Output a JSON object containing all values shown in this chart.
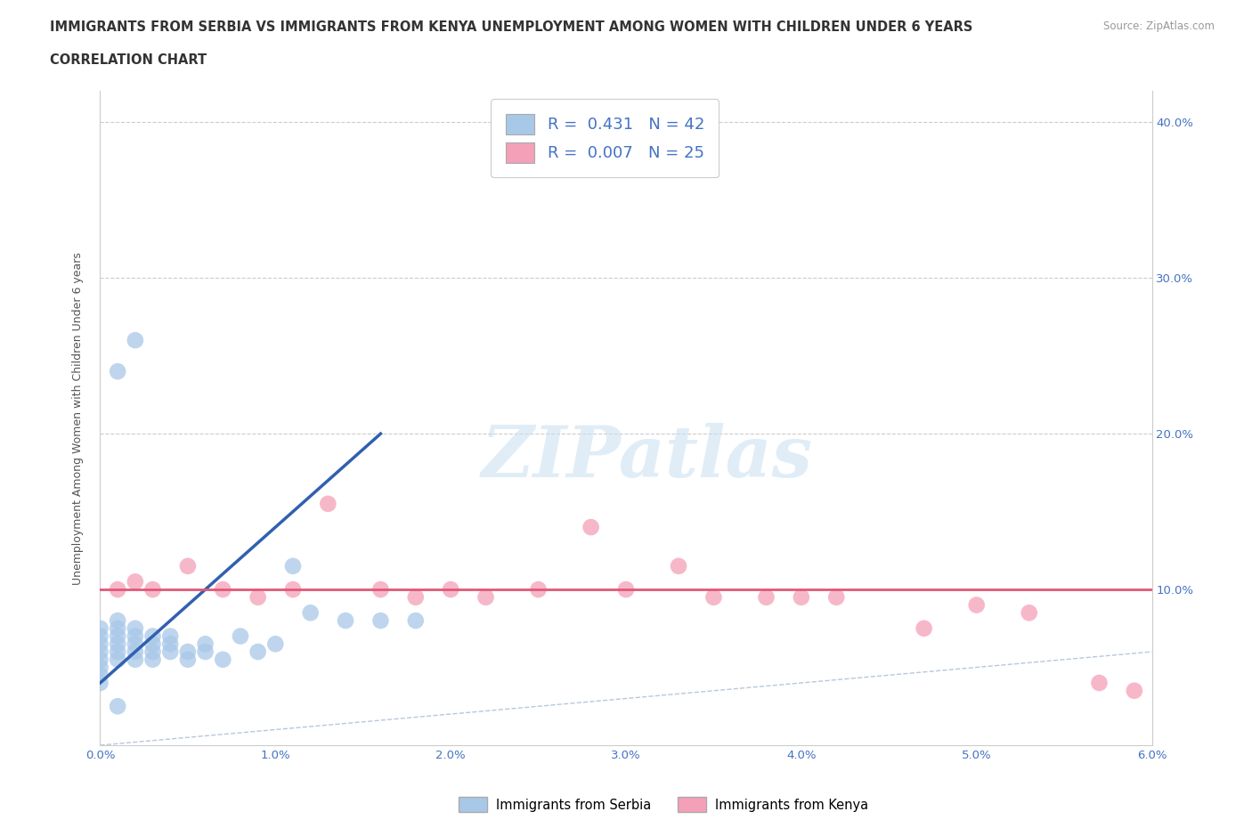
{
  "title_line1": "IMMIGRANTS FROM SERBIA VS IMMIGRANTS FROM KENYA UNEMPLOYMENT AMONG WOMEN WITH CHILDREN UNDER 6 YEARS",
  "title_line2": "CORRELATION CHART",
  "source": "Source: ZipAtlas.com",
  "watermark": "ZIPatlas",
  "ylabel": "Unemployment Among Women with Children Under 6 years",
  "xlim": [
    0.0,
    0.06
  ],
  "ylim": [
    0.0,
    0.42
  ],
  "xticks": [
    0.0,
    0.01,
    0.02,
    0.03,
    0.04,
    0.05,
    0.06
  ],
  "xticklabels": [
    "0.0%",
    "1.0%",
    "2.0%",
    "3.0%",
    "4.0%",
    "5.0%",
    "6.0%"
  ],
  "yticks": [
    0.0,
    0.1,
    0.2,
    0.3,
    0.4
  ],
  "yticklabels": [
    "",
    "10.0%",
    "20.0%",
    "30.0%",
    "40.0%"
  ],
  "serbia_color": "#a8c8e8",
  "kenya_color": "#f4a0b8",
  "serbia_R": 0.431,
  "serbia_N": 42,
  "kenya_R": 0.007,
  "kenya_N": 25,
  "serbia_line_color": "#3060b0",
  "kenya_line_color": "#e05878",
  "diagonal_color": "#b8c8d8",
  "serbia_x": [
    0.0,
    0.0,
    0.0,
    0.0,
    0.0,
    0.0,
    0.0,
    0.0,
    0.001,
    0.001,
    0.001,
    0.001,
    0.001,
    0.001,
    0.001,
    0.002,
    0.002,
    0.002,
    0.002,
    0.002,
    0.003,
    0.003,
    0.003,
    0.003,
    0.004,
    0.004,
    0.004,
    0.005,
    0.005,
    0.006,
    0.006,
    0.007,
    0.008,
    0.009,
    0.01,
    0.011,
    0.012,
    0.014,
    0.016,
    0.018,
    0.002,
    0.001
  ],
  "serbia_y": [
    0.065,
    0.07,
    0.075,
    0.06,
    0.055,
    0.05,
    0.045,
    0.04,
    0.055,
    0.06,
    0.065,
    0.07,
    0.08,
    0.075,
    0.025,
    0.06,
    0.07,
    0.065,
    0.055,
    0.075,
    0.065,
    0.07,
    0.06,
    0.055,
    0.07,
    0.065,
    0.06,
    0.055,
    0.06,
    0.065,
    0.06,
    0.055,
    0.07,
    0.06,
    0.065,
    0.115,
    0.085,
    0.08,
    0.08,
    0.08,
    0.26,
    0.24
  ],
  "kenya_x": [
    0.001,
    0.002,
    0.003,
    0.005,
    0.007,
    0.009,
    0.011,
    0.013,
    0.016,
    0.018,
    0.02,
    0.022,
    0.025,
    0.028,
    0.03,
    0.033,
    0.035,
    0.038,
    0.04,
    0.042,
    0.047,
    0.05,
    0.053,
    0.057,
    0.059
  ],
  "kenya_y": [
    0.1,
    0.105,
    0.1,
    0.115,
    0.1,
    0.095,
    0.1,
    0.155,
    0.1,
    0.095,
    0.1,
    0.095,
    0.1,
    0.14,
    0.1,
    0.115,
    0.095,
    0.095,
    0.095,
    0.095,
    0.075,
    0.09,
    0.085,
    0.04,
    0.035
  ],
  "serbia_line_x": [
    0.0,
    0.016
  ],
  "serbia_line_y": [
    0.04,
    0.2
  ],
  "kenya_line_x": [
    0.0,
    0.06
  ],
  "kenya_line_y": [
    0.1,
    0.1
  ]
}
